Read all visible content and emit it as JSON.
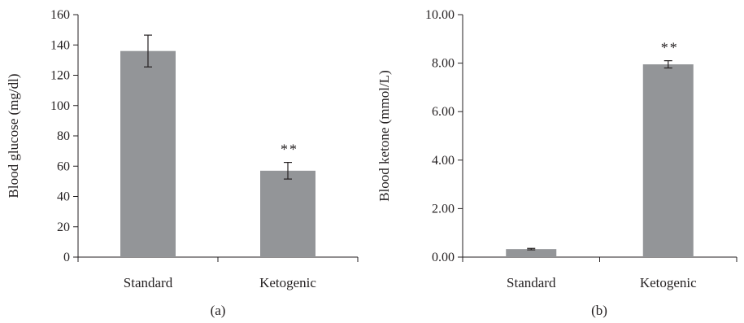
{
  "chart_data": [
    {
      "type": "bar",
      "panel_label": "(a)",
      "categories": [
        "Standard",
        "Ketogenic"
      ],
      "values": [
        136,
        57
      ],
      "errors": [
        10.5,
        5.5
      ],
      "annotations": [
        "",
        "**"
      ],
      "ylabel": "Blood glucose (mg/dl)",
      "ylim": [
        0,
        160
      ],
      "yticks": [
        0,
        20,
        40,
        60,
        80,
        100,
        120,
        140,
        160
      ],
      "ytick_labels": [
        "0",
        "20",
        "40",
        "60",
        "80",
        "100",
        "120",
        "140",
        "160"
      ],
      "bar_color": "#939598",
      "grid": false
    },
    {
      "type": "bar",
      "panel_label": "(b)",
      "categories": [
        "Standard",
        "Ketogenic"
      ],
      "values": [
        0.33,
        7.95
      ],
      "errors": [
        0.03,
        0.15
      ],
      "annotations": [
        "",
        "**"
      ],
      "ylabel": "Blood ketone (mmol/L)",
      "ylim": [
        0,
        10
      ],
      "yticks": [
        0,
        2,
        4,
        6,
        8,
        10
      ],
      "ytick_labels": [
        "0.00",
        "2.00",
        "4.00",
        "6.00",
        "8.00",
        "10.00"
      ],
      "bar_color": "#939598",
      "grid": false
    }
  ]
}
